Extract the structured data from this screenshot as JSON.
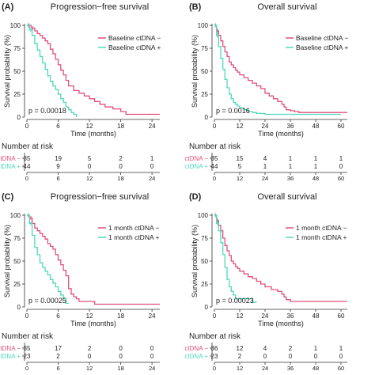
{
  "colors": {
    "negative": "#e0507a",
    "positive": "#4fd8bd",
    "axis": "#333333",
    "text": "#222222"
  },
  "chart_data": [
    {
      "type": "line",
      "panel_label": "(A)",
      "title": "Progression−free survival",
      "xlabel": "Time (months)",
      "ylabel": "Survival probability (%)",
      "xlim": [
        0,
        25.5
      ],
      "ylim": [
        0,
        100
      ],
      "xticks": [
        0,
        6,
        12,
        18,
        24
      ],
      "yticks": [
        0,
        25,
        50,
        75,
        100
      ],
      "pvalue": "p = 0.00018",
      "legend_position": "right",
      "series": [
        {
          "name": "Baseline ctDNA −",
          "color": "#e0507a",
          "x": [
            0,
            0.8,
            1.5,
            2.0,
            2.5,
            3.0,
            3.5,
            4.0,
            4.5,
            5.0,
            5.5,
            6.0,
            6.5,
            7.0,
            7.5,
            8.0,
            9.0,
            10.0,
            11.0,
            12.0,
            13.0,
            14.0,
            15.0,
            16.5,
            18.0,
            19.0,
            25.5
          ],
          "y": [
            100,
            97,
            94,
            91,
            89,
            86,
            83,
            80,
            74,
            69,
            63,
            57,
            51,
            46,
            40,
            34,
            29,
            26,
            23,
            20,
            17,
            14,
            11,
            9,
            6,
            3,
            3
          ]
        },
        {
          "name": "Baseline ctDNA +",
          "color": "#4fd8bd",
          "x": [
            0,
            0.5,
            1.0,
            1.5,
            2.0,
            2.5,
            3.0,
            3.5,
            4.0,
            4.5,
            5.0,
            5.5,
            6.0,
            6.5,
            7.0,
            7.5,
            8.0,
            8.5,
            9.0,
            9.5
          ],
          "y": [
            100,
            95,
            89,
            80,
            73,
            66,
            59,
            52,
            45,
            39,
            34,
            30,
            25,
            20,
            16,
            11,
            8,
            5,
            3,
            0
          ]
        }
      ],
      "risk_table": {
        "title": "Number at risk",
        "xticks": [
          0,
          6,
          12,
          18,
          24
        ],
        "rows": [
          {
            "label": "ctDNA −",
            "color": "#e0507a",
            "values": [
              "35",
              "19",
              "5",
              "2",
              "1"
            ]
          },
          {
            "label": "ctDNA +",
            "color": "#4fd8bd",
            "values": [
              "44",
              "9",
              "0",
              "0",
              "0"
            ]
          }
        ]
      }
    },
    {
      "type": "line",
      "panel_label": "(B)",
      "title": "Overall survival",
      "xlabel": "Time (months)",
      "ylabel": "Survival probability (%)",
      "xlim": [
        0,
        63
      ],
      "ylim": [
        0,
        100
      ],
      "xticks": [
        0,
        12,
        24,
        36,
        48,
        60
      ],
      "yticks": [
        0,
        25,
        50,
        75,
        100
      ],
      "pvalue": "p = 0.0016",
      "legend_position": "top-right",
      "series": [
        {
          "name": "Baseline ctDNA −",
          "color": "#e0507a",
          "x": [
            0,
            1,
            2,
            3,
            4,
            5,
            6,
            7,
            8,
            9,
            10,
            11,
            12,
            14,
            16,
            18,
            20,
            22,
            24,
            26,
            28,
            30,
            32,
            33,
            34,
            36,
            38,
            40,
            63
          ],
          "y": [
            100,
            94,
            89,
            83,
            77,
            71,
            66,
            60,
            57,
            54,
            51,
            49,
            46,
            43,
            40,
            37,
            34,
            31,
            26,
            23,
            20,
            17,
            14,
            11,
            8,
            7,
            6,
            5,
            5
          ]
        },
        {
          "name": "Baseline ctDNA +",
          "color": "#4fd8bd",
          "x": [
            0,
            1,
            2,
            3,
            4,
            5,
            6,
            7,
            8,
            9,
            10,
            11,
            12,
            14,
            16,
            18,
            20,
            24,
            30,
            36,
            48,
            60
          ],
          "y": [
            100,
            89,
            77,
            64,
            52,
            41,
            32,
            25,
            20,
            16,
            14,
            12,
            10,
            8,
            6,
            5,
            4,
            3,
            3,
            3,
            3,
            3
          ]
        }
      ],
      "risk_table": {
        "title": "Number at risk",
        "xticks": [
          0,
          12,
          24,
          36,
          48,
          60
        ],
        "rows": [
          {
            "label": "ctDNA −",
            "color": "#e0507a",
            "values": [
              "35",
              "15",
              "4",
              "1",
              "1",
              "1"
            ]
          },
          {
            "label": "ctDNA +",
            "color": "#4fd8bd",
            "values": [
              "44",
              "5",
              "1",
              "1",
              "1",
              "0"
            ]
          }
        ]
      }
    },
    {
      "type": "line",
      "panel_label": "(C)",
      "title": "Progression−free survival",
      "xlabel": "Time (months)",
      "ylabel": "Survival probability (%)",
      "xlim": [
        0,
        25.5
      ],
      "ylim": [
        0,
        100
      ],
      "xticks": [
        0,
        6,
        12,
        18,
        24
      ],
      "yticks": [
        0,
        25,
        50,
        75,
        100
      ],
      "pvalue": "p = 0.00025",
      "legend_position": "right",
      "series": [
        {
          "name": "1 month ctDNA −",
          "color": "#e0507a",
          "x": [
            0,
            0.5,
            1.0,
            1.5,
            2.0,
            2.5,
            3.0,
            3.5,
            4.0,
            4.5,
            5.0,
            5.5,
            6.0,
            6.5,
            7.0,
            7.5,
            8.0,
            8.5,
            9.0,
            9.5,
            10.0,
            12.0,
            13.0,
            25.5
          ],
          "y": [
            100,
            97,
            91,
            86,
            83,
            80,
            77,
            74,
            69,
            66,
            63,
            57,
            51,
            46,
            40,
            34,
            20,
            14,
            11,
            9,
            6,
            6,
            3,
            3
          ]
        },
        {
          "name": "1 month ctDNA +",
          "color": "#4fd8bd",
          "x": [
            0,
            0.5,
            1.0,
            1.5,
            2.0,
            2.5,
            3.0,
            3.5,
            4.0,
            4.5,
            5.0,
            5.5,
            6.0,
            6.5,
            7.0,
            7.5,
            8.0
          ],
          "y": [
            100,
            91,
            78,
            65,
            57,
            48,
            43,
            39,
            35,
            30,
            26,
            22,
            17,
            13,
            9,
            4,
            4
          ]
        }
      ],
      "risk_table": {
        "title": "Number at risk",
        "xticks": [
          0,
          6,
          12,
          18,
          24
        ],
        "rows": [
          {
            "label": "ctDNA −",
            "color": "#e0507a",
            "values": [
              "35",
              "17",
              "2",
              "0",
              "0"
            ]
          },
          {
            "label": "ctDNA +",
            "color": "#4fd8bd",
            "values": [
              "23",
              "2",
              "0",
              "0",
              "0"
            ]
          }
        ]
      }
    },
    {
      "type": "line",
      "panel_label": "(D)",
      "title": "Overall survival",
      "xlabel": "Time (months)",
      "ylabel": "Survival probability (%)",
      "xlim": [
        0,
        63
      ],
      "ylim": [
        0,
        100
      ],
      "xticks": [
        0,
        12,
        24,
        36,
        48,
        60
      ],
      "yticks": [
        0,
        25,
        50,
        75,
        100
      ],
      "pvalue": "p = 0.00023",
      "legend_position": "top-right",
      "series": [
        {
          "name": "1 month ctDNA −",
          "color": "#e0507a",
          "x": [
            0,
            1,
            2,
            3,
            4,
            5,
            6,
            7,
            8,
            9,
            10,
            11,
            12,
            14,
            16,
            18,
            20,
            22,
            24,
            27,
            30,
            32,
            33,
            34,
            36,
            63
          ],
          "y": [
            100,
            94,
            89,
            83,
            75,
            67,
            61,
            56,
            50,
            47,
            44,
            42,
            39,
            36,
            33,
            31,
            28,
            25,
            22,
            19,
            17,
            14,
            11,
            8,
            6,
            6
          ]
        },
        {
          "name": "1 month ctDNA +",
          "color": "#4fd8bd",
          "x": [
            0,
            1,
            2,
            3,
            4,
            5,
            6,
            7,
            8,
            9,
            10,
            12,
            14,
            16,
            18,
            20
          ],
          "y": [
            100,
            91,
            83,
            70,
            57,
            43,
            30,
            22,
            17,
            13,
            9,
            9,
            9,
            9,
            5,
            5
          ]
        }
      ],
      "risk_table": {
        "title": "Number at risk",
        "xticks": [
          0,
          12,
          24,
          36,
          48,
          60
        ],
        "rows": [
          {
            "label": "ctDNA −",
            "color": "#e0507a",
            "values": [
              "36",
              "12",
              "4",
              "2",
              "1",
              "1"
            ]
          },
          {
            "label": "ctDNA +",
            "color": "#4fd8bd",
            "values": [
              "23",
              "2",
              "0",
              "0",
              "0",
              "0"
            ]
          }
        ]
      }
    }
  ]
}
